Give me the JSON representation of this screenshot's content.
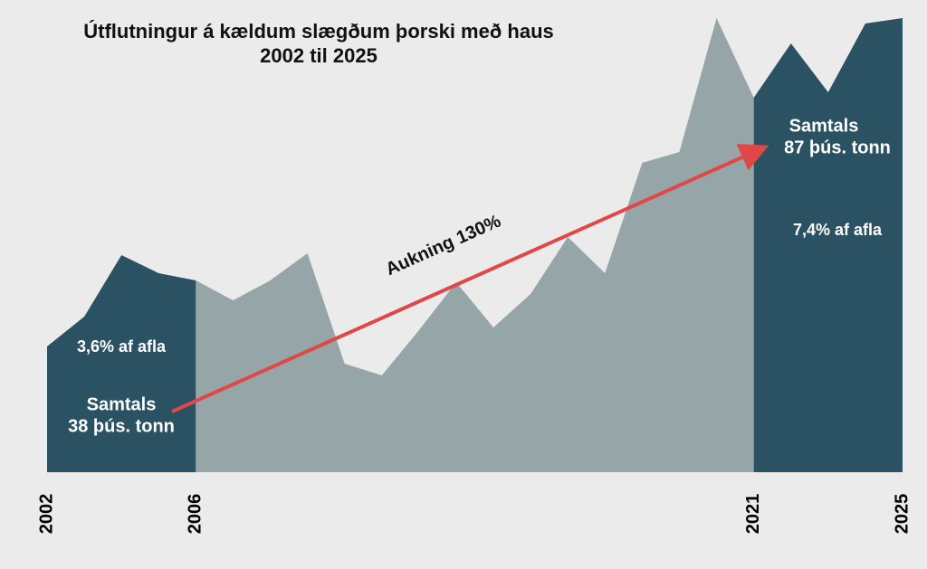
{
  "chart_data": {
    "type": "area",
    "title": "Útflutningur á kældum slægðum þorski með haus",
    "subtitle": "2002 til 2025",
    "x": [
      2002,
      2003,
      2004,
      2005,
      2006,
      2007,
      2008,
      2009,
      2010,
      2011,
      2012,
      2013,
      2014,
      2015,
      2016,
      2017,
      2018,
      2019,
      2020,
      2021,
      2022,
      2023,
      2024,
      2025
    ],
    "xlim": [
      2002,
      2025
    ],
    "xticks": [
      2002,
      2006,
      2021,
      2025
    ],
    "ylim": [
      0,
      104
    ],
    "series": [
      {
        "color": "#2b5263",
        "values": [
          27.8,
          34.4,
          48,
          44,
          42.4,
          null,
          null,
          null,
          null,
          null,
          null,
          null,
          null,
          null,
          null,
          null,
          null,
          null,
          null,
          null,
          null,
          null,
          null,
          null
        ]
      },
      {
        "color": "#96a5a7",
        "values": [
          null,
          null,
          null,
          null,
          42.4,
          38,
          42.4,
          48.4,
          24,
          21.4,
          31.4,
          42,
          32,
          39.4,
          52,
          44,
          68.4,
          70.8,
          100.4,
          82.8,
          null,
          null,
          null,
          null
        ]
      },
      {
        "color": "#2b5263",
        "values": [
          null,
          null,
          null,
          null,
          null,
          null,
          null,
          null,
          null,
          null,
          null,
          null,
          null,
          null,
          null,
          null,
          null,
          null,
          null,
          82.8,
          94.8,
          84,
          99.2,
          100.4
        ]
      }
    ],
    "annotations": [
      "3,6% af afla",
      "Samtals",
      "38 þús. tonn",
      "Aukning 130%",
      "Samtals",
      "87 þús. tonn",
      "7,4% af afla"
    ]
  }
}
